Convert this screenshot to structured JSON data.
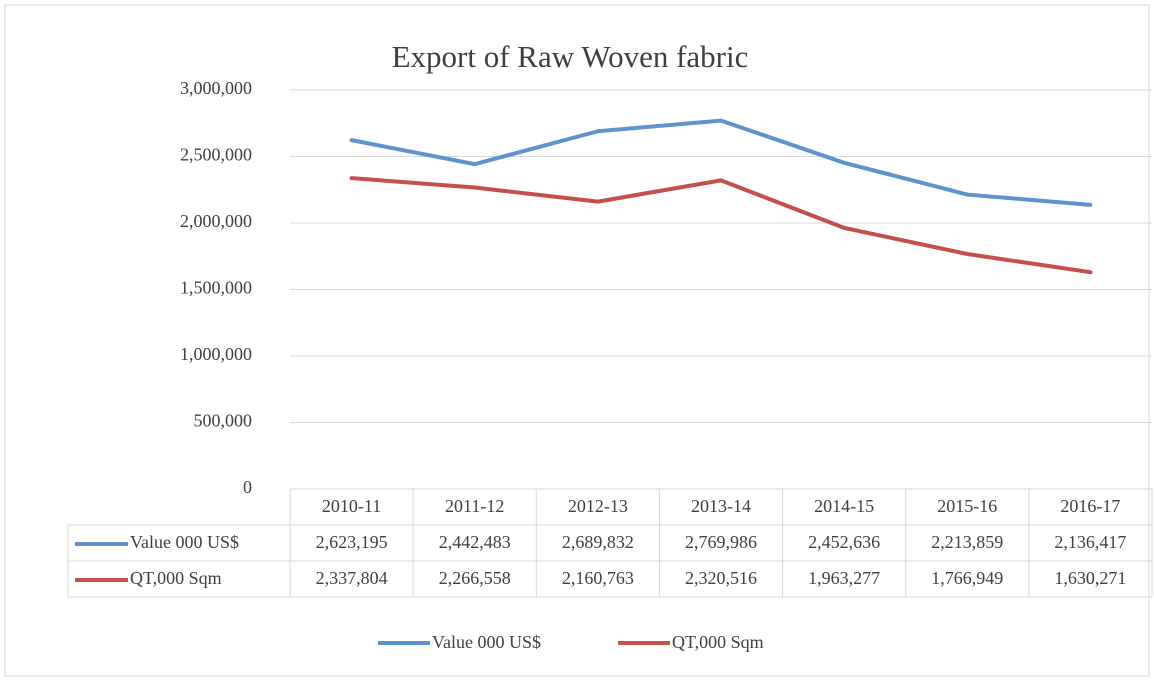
{
  "chart_data": {
    "type": "line",
    "title": "Export of Raw Woven fabric",
    "categories": [
      "2010-11",
      "2011-12",
      "2012-13",
      "2013-14",
      "2014-15",
      "2015-16",
      "2016-17"
    ],
    "series": [
      {
        "name": "Value 000 US$",
        "color": "#5f93cc",
        "values": [
          2623195,
          2442483,
          2689832,
          2769986,
          2452636,
          2213859,
          2136417
        ],
        "value_labels": [
          "2,623,195",
          "2,442,483",
          "2,689,832",
          "2,769,986",
          "2,452,636",
          "2,213,859",
          "2,136,417"
        ]
      },
      {
        "name": "QT,000 Sqm",
        "color": "#c5504b",
        "values": [
          2337804,
          2266558,
          2160763,
          2320516,
          1963277,
          1766949,
          1630271
        ],
        "value_labels": [
          "2,337,804",
          "2,266,558",
          "2,160,763",
          "2,320,516",
          "1,963,277",
          "1,766,949",
          "1,630,271"
        ]
      }
    ],
    "ylim": [
      0,
      3000000
    ],
    "yticks": [
      0,
      {
        "value": 500000,
        "label": "500,000"
      },
      {
        "value": 1000000,
        "label": "1,000,000"
      },
      {
        "value": 1500000,
        "label": "1,500,000"
      },
      {
        "value": 2000000,
        "label": "2,000,000"
      },
      {
        "value": 2500000,
        "label": "2,500,000"
      },
      {
        "value": 3000000,
        "label": "3,000,000"
      }
    ],
    "grid": true,
    "legend": "bottom"
  }
}
